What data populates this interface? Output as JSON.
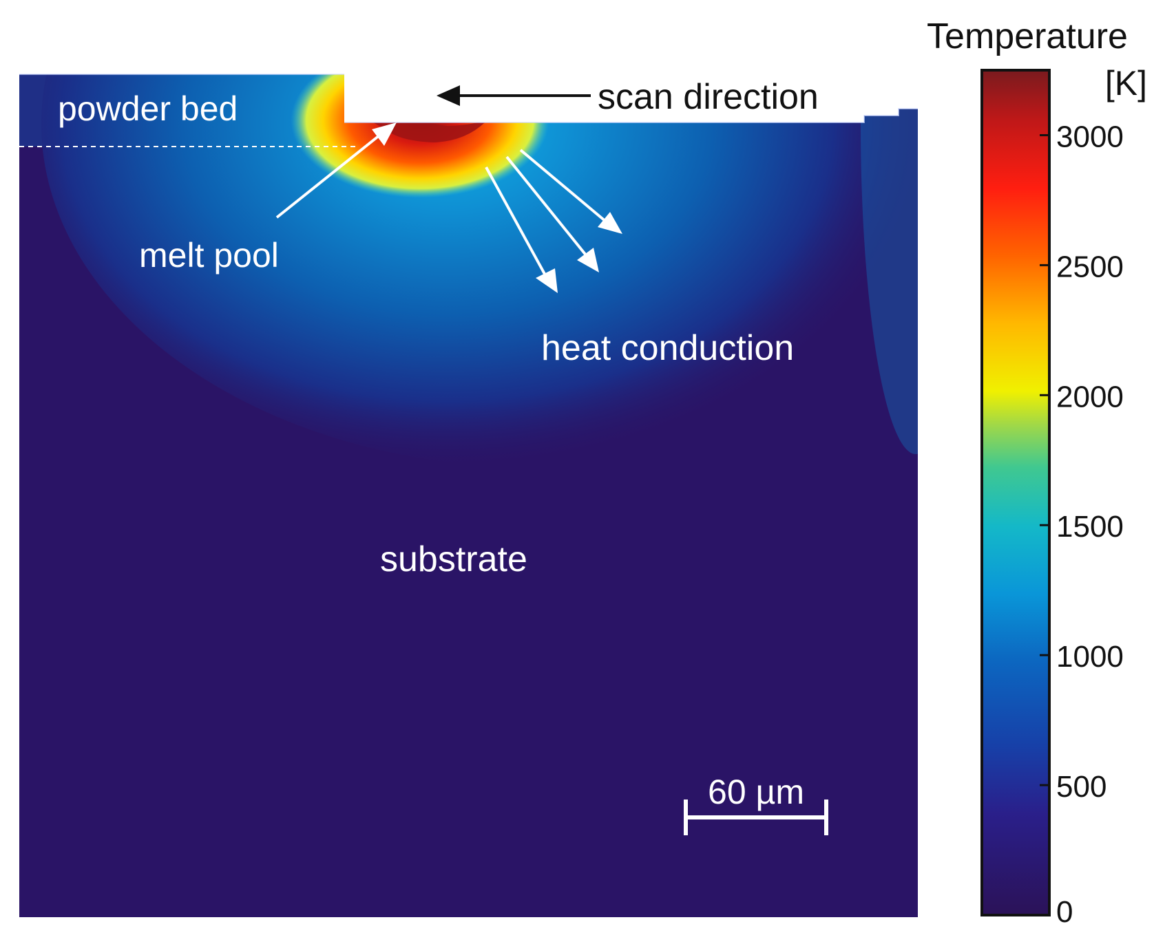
{
  "labels": {
    "powder_bed": "powder bed",
    "scan_direction": "scan direction",
    "melt_pool": "melt pool",
    "heat_conduction": "heat conduction",
    "substrate": "substrate",
    "scale_bar": "60 µm"
  },
  "colorbar": {
    "title": "Temperature",
    "unit": "[K]",
    "min": 0,
    "max": 3250,
    "ticks": [
      {
        "value": 3000,
        "label": "3000"
      },
      {
        "value": 2500,
        "label": "2500"
      },
      {
        "value": 2000,
        "label": "2000"
      },
      {
        "value": 1500,
        "label": "1500"
      },
      {
        "value": 1000,
        "label": "1000"
      },
      {
        "value": 500,
        "label": "500"
      },
      {
        "value": 0,
        "label": "0"
      }
    ]
  },
  "colors": {
    "substrate": "#2a1466",
    "powder_bed": "#1f2f86",
    "conduction_inner": "#0f9ed8",
    "conduction_mid": "#0d5fb0",
    "melt_core": "#9a1414",
    "melt_mid": "#ff2a00",
    "melt_edge": "#ffe100",
    "label_text": "#ffffff",
    "scan_text": "#111111"
  }
}
